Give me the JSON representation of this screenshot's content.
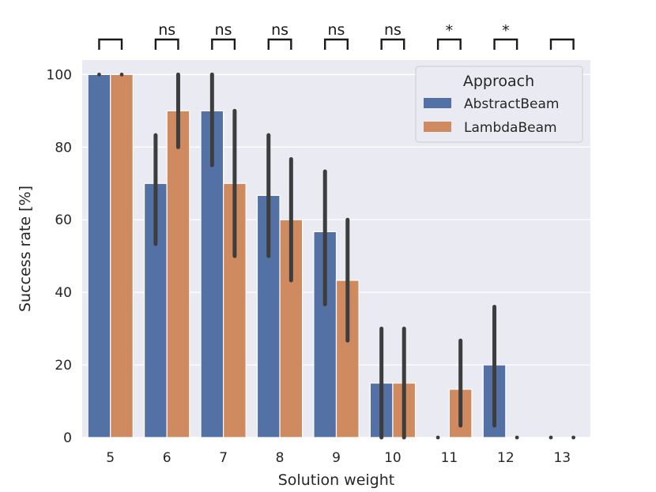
{
  "chart_data": {
    "type": "bar",
    "xlabel": "Solution weight",
    "ylabel": "Success rate [%]",
    "ylim": [
      0,
      104
    ],
    "yticks": [
      0,
      20,
      40,
      60,
      80,
      100
    ],
    "categories": [
      "5",
      "6",
      "7",
      "8",
      "9",
      "10",
      "11",
      "12",
      "13"
    ],
    "grid": true,
    "legend": {
      "title": "Approach",
      "position": "top-right"
    },
    "series": [
      {
        "name": "AbstractBeam",
        "color": "#5471a6",
        "values": [
          100,
          70,
          90,
          66.7,
          56.7,
          15,
          0,
          20,
          0
        ],
        "ci_low": [
          100,
          53.3,
          75,
          50,
          36.7,
          0,
          0,
          3.3,
          0
        ],
        "ci_high": [
          100,
          83.3,
          100,
          83.3,
          73.3,
          30,
          0,
          36,
          0
        ]
      },
      {
        "name": "LambdaBeam",
        "color": "#d08a60",
        "values": [
          100,
          90,
          70,
          60,
          43.3,
          15,
          13.3,
          0,
          0
        ],
        "ci_low": [
          100,
          80,
          50,
          43.3,
          26.7,
          0,
          3.3,
          0,
          0
        ],
        "ci_high": [
          100,
          100,
          90,
          76.7,
          60,
          30,
          26.7,
          0,
          0
        ]
      }
    ],
    "significance": [
      "",
      "ns",
      "ns",
      "ns",
      "ns",
      "ns",
      "*",
      "*",
      ""
    ]
  }
}
